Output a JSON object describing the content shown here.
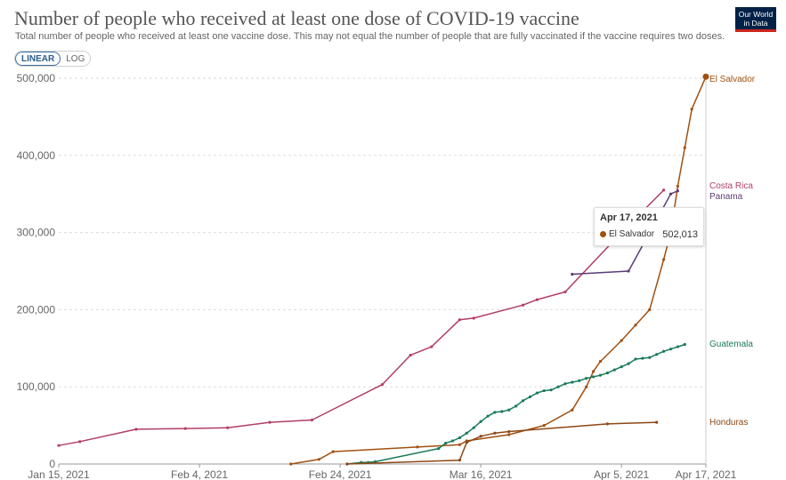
{
  "header": {
    "title": "Number of people who received at least one dose of COVID-19 vaccine",
    "subtitle": "Total number of people who received at least one vaccine dose. This may not equal the number of people that are fully vaccinated if the vaccine requires two doses.",
    "logo_line1": "Our World",
    "logo_line2": "in Data"
  },
  "controls": {
    "linear_label": "LINEAR",
    "log_label": "LOG",
    "selected": "LINEAR"
  },
  "tooltip": {
    "date": "Apr 17, 2021",
    "series": "El Salvador",
    "value": "502,013"
  },
  "colors": {
    "el_salvador": "#a15010",
    "costa_rica": "#b13e66",
    "panama": "#5a3c74",
    "guatemala": "#1a7a5a",
    "honduras": "#8c4716"
  },
  "chart_data": {
    "type": "line",
    "title": "Number of people who received at least one dose of COVID-19 vaccine",
    "x_ticks": [
      "Jan 15, 2021",
      "Feb 4, 2021",
      "Feb 24, 2021",
      "Mar 16, 2021",
      "Apr 5, 2021",
      "Apr 17, 2021"
    ],
    "y_ticks": [
      "0",
      "100,000",
      "200,000",
      "300,000",
      "400,000",
      "500,000"
    ],
    "ylim": [
      0,
      500000
    ],
    "xlim": [
      "2021-01-15",
      "2021-04-17"
    ],
    "grid": true,
    "legend": "inline-right",
    "series": [
      {
        "name": "El Salvador",
        "label": "El Salvador",
        "color": "#a15010",
        "points": [
          [
            "2021-02-17",
            0
          ],
          [
            "2021-02-21",
            6000
          ],
          [
            "2021-02-23",
            16000
          ],
          [
            "2021-03-07",
            22000
          ],
          [
            "2021-03-13",
            25000
          ],
          [
            "2021-03-14",
            30000
          ],
          [
            "2021-03-20",
            38000
          ],
          [
            "2021-03-25",
            50000
          ],
          [
            "2021-03-29",
            70000
          ],
          [
            "2021-03-31",
            100000
          ],
          [
            "2021-04-01",
            120000
          ],
          [
            "2021-04-02",
            133000
          ],
          [
            "2021-04-05",
            160000
          ],
          [
            "2021-04-07",
            180000
          ],
          [
            "2021-04-09",
            200000
          ],
          [
            "2021-04-11",
            265000
          ],
          [
            "2021-04-12",
            300000
          ],
          [
            "2021-04-13",
            360000
          ],
          [
            "2021-04-14",
            410000
          ],
          [
            "2021-04-15",
            460000
          ],
          [
            "2021-04-17",
            502013
          ]
        ]
      },
      {
        "name": "Costa Rica",
        "label": "Costa Rica",
        "color": "#b13e66",
        "points": [
          [
            "2021-01-15",
            24000
          ],
          [
            "2021-01-18",
            29000
          ],
          [
            "2021-01-26",
            45000
          ],
          [
            "2021-02-02",
            46000
          ],
          [
            "2021-02-08",
            47000
          ],
          [
            "2021-02-14",
            54000
          ],
          [
            "2021-02-20",
            57000
          ],
          [
            "2021-03-02",
            103000
          ],
          [
            "2021-03-06",
            141000
          ],
          [
            "2021-03-09",
            152000
          ],
          [
            "2021-03-13",
            187000
          ],
          [
            "2021-03-15",
            189000
          ],
          [
            "2021-03-22",
            206000
          ],
          [
            "2021-03-24",
            213000
          ],
          [
            "2021-03-28",
            223000
          ],
          [
            "2021-04-05",
            300000
          ],
          [
            "2021-04-11",
            355000
          ]
        ]
      },
      {
        "name": "Panama",
        "label": "Panama",
        "color": "#5a3c74",
        "points": [
          [
            "2021-03-29",
            246000
          ],
          [
            "2021-04-06",
            250000
          ],
          [
            "2021-04-12",
            350000
          ],
          [
            "2021-04-13",
            354000
          ]
        ]
      },
      {
        "name": "Guatemala",
        "label": "Guatemala",
        "color": "#1a7a5a",
        "points": [
          [
            "2021-02-25",
            0
          ],
          [
            "2021-02-27",
            2000
          ],
          [
            "2021-02-28",
            2000
          ],
          [
            "2021-03-01",
            3000
          ],
          [
            "2021-03-10",
            20000
          ],
          [
            "2021-03-11",
            27000
          ],
          [
            "2021-03-12",
            30000
          ],
          [
            "2021-03-13",
            34000
          ],
          [
            "2021-03-14",
            40000
          ],
          [
            "2021-03-15",
            47000
          ],
          [
            "2021-03-16",
            55000
          ],
          [
            "2021-03-17",
            62000
          ],
          [
            "2021-03-18",
            67000
          ],
          [
            "2021-03-19",
            68000
          ],
          [
            "2021-03-20",
            70000
          ],
          [
            "2021-03-21",
            75000
          ],
          [
            "2021-03-22",
            82000
          ],
          [
            "2021-03-23",
            87000
          ],
          [
            "2021-03-24",
            92000
          ],
          [
            "2021-03-25",
            95000
          ],
          [
            "2021-03-26",
            96000
          ],
          [
            "2021-03-27",
            100000
          ],
          [
            "2021-03-28",
            104000
          ],
          [
            "2021-03-29",
            106000
          ],
          [
            "2021-03-30",
            108000
          ],
          [
            "2021-03-31",
            111000
          ],
          [
            "2021-04-01",
            113000
          ],
          [
            "2021-04-02",
            115000
          ],
          [
            "2021-04-03",
            118000
          ],
          [
            "2021-04-04",
            122000
          ],
          [
            "2021-04-05",
            126000
          ],
          [
            "2021-04-06",
            130000
          ],
          [
            "2021-04-07",
            136000
          ],
          [
            "2021-04-08",
            137000
          ],
          [
            "2021-04-09",
            138000
          ],
          [
            "2021-04-10",
            142000
          ],
          [
            "2021-04-11",
            146000
          ],
          [
            "2021-04-12",
            149000
          ],
          [
            "2021-04-13",
            152000
          ],
          [
            "2021-04-14",
            155000
          ]
        ]
      },
      {
        "name": "Honduras",
        "label": "Honduras",
        "color": "#8c4716",
        "points": [
          [
            "2021-02-25",
            0
          ],
          [
            "2021-03-13",
            5000
          ],
          [
            "2021-03-14",
            28000
          ],
          [
            "2021-03-16",
            36000
          ],
          [
            "2021-03-18",
            40000
          ],
          [
            "2021-03-20",
            42000
          ],
          [
            "2021-04-03",
            52000
          ],
          [
            "2021-04-10",
            54000
          ]
        ]
      }
    ]
  }
}
